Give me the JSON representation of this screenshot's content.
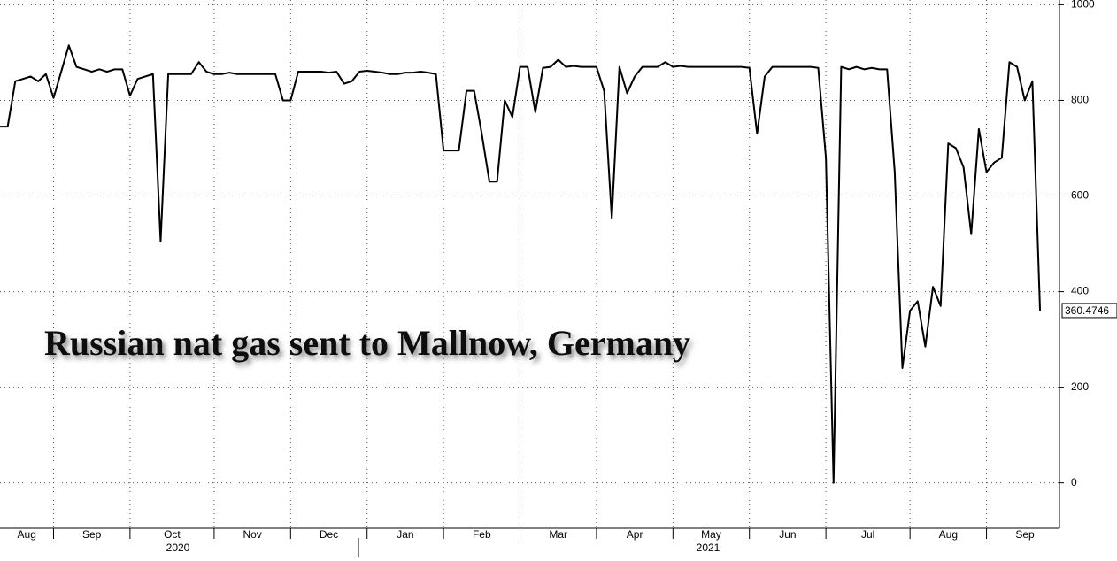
{
  "chart_data": {
    "type": "line",
    "title": "Russian nat gas sent to Mallnow, Germany",
    "year_labels": [
      "2020",
      "2021"
    ],
    "categories": [
      "Aug",
      null,
      null,
      null,
      null,
      null,
      null,
      "Sep",
      null,
      null,
      null,
      null,
      null,
      null,
      null,
      null,
      null,
      "Oct",
      null,
      null,
      null,
      null,
      null,
      null,
      null,
      null,
      null,
      null,
      "Nov",
      null,
      null,
      null,
      null,
      null,
      null,
      null,
      null,
      null,
      "Dec",
      null,
      null,
      null,
      null,
      null,
      null,
      null,
      null,
      null,
      "Jan",
      null,
      null,
      null,
      null,
      null,
      null,
      null,
      null,
      null,
      "Feb",
      null,
      null,
      null,
      null,
      null,
      null,
      null,
      null,
      null,
      "Mar",
      null,
      null,
      null,
      null,
      null,
      null,
      null,
      null,
      null,
      "Apr",
      null,
      null,
      null,
      null,
      null,
      null,
      null,
      null,
      null,
      "May",
      null,
      null,
      null,
      null,
      null,
      null,
      null,
      null,
      null,
      "Jun",
      null,
      null,
      null,
      null,
      null,
      null,
      null,
      null,
      null,
      "Jul",
      null,
      null,
      null,
      null,
      null,
      null,
      null,
      null,
      null,
      null,
      "Aug",
      null,
      null,
      null,
      null,
      null,
      null,
      null,
      null,
      null,
      "Sep",
      null,
      null,
      null,
      null,
      null,
      null,
      null
    ],
    "values": [
      745,
      745,
      840,
      845,
      850,
      840,
      855,
      805,
      860,
      915,
      870,
      865,
      860,
      865,
      860,
      865,
      865,
      810,
      845,
      850,
      855,
      505,
      855,
      855,
      855,
      855,
      880,
      860,
      855,
      855,
      858,
      855,
      855,
      855,
      855,
      855,
      855,
      800,
      800,
      860,
      860,
      860,
      860,
      858,
      860,
      835,
      840,
      860,
      862,
      860,
      858,
      855,
      855,
      858,
      858,
      860,
      858,
      855,
      695,
      695,
      695,
      820,
      820,
      730,
      630,
      630,
      800,
      765,
      870,
      870,
      775,
      868,
      870,
      885,
      870,
      872,
      870,
      870,
      870,
      820,
      553,
      870,
      815,
      850,
      870,
      870,
      870,
      880,
      870,
      872,
      870,
      870,
      870,
      870,
      870,
      870,
      870,
      870,
      868,
      730,
      850,
      870,
      870,
      870,
      870,
      870,
      870,
      868,
      680,
      0,
      870,
      865,
      870,
      865,
      868,
      865,
      865,
      650,
      240,
      360,
      380,
      285,
      410,
      370,
      710,
      700,
      660,
      520,
      740,
      650,
      670,
      680,
      880,
      870,
      800,
      840,
      360.4746
    ],
    "color": "#000000",
    "ylim": [
      -95,
      1010
    ],
    "yticks": [
      0,
      200,
      400,
      600,
      800,
      1000
    ],
    "grid": true
  }
}
